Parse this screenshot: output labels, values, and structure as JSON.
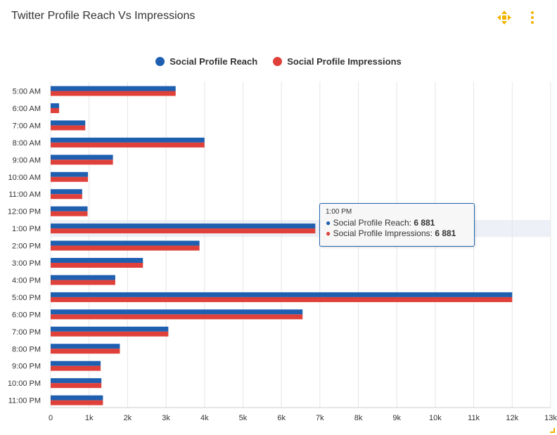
{
  "header": {
    "title": "Twitter Profile Reach Vs Impressions",
    "move_icon": "move-arrows-icon",
    "menu_icon": "kebab-menu-icon",
    "accent_color": "#f2b200"
  },
  "legend": [
    {
      "label": "Social Profile Reach",
      "color": "#1f5fb0"
    },
    {
      "label": "Social Profile Impressions",
      "color": "#e0403a"
    }
  ],
  "tooltip": {
    "time": "1:00 PM",
    "rows": [
      {
        "label": "Social Profile Reach:",
        "value": "6 881",
        "color": "#1f5fb0"
      },
      {
        "label": "Social Profile Impressions:",
        "value": "6 881",
        "color": "#e0403a"
      }
    ]
  },
  "chart_data": {
    "type": "bar",
    "orientation": "horizontal",
    "title": "Twitter Profile Reach Vs Impressions",
    "xlabel": "",
    "ylabel": "",
    "categories": [
      "5:00 AM",
      "6:00 AM",
      "7:00 AM",
      "8:00 AM",
      "9:00 AM",
      "10:00 AM",
      "11:00 AM",
      "12:00 PM",
      "1:00 PM",
      "2:00 PM",
      "3:00 PM",
      "4:00 PM",
      "5:00 PM",
      "6:00 PM",
      "7:00 PM",
      "8:00 PM",
      "9:00 PM",
      "10:00 PM",
      "11:00 PM"
    ],
    "series": [
      {
        "name": "Social Profile Reach",
        "color": "#1f5fb0",
        "values": [
          3250,
          220,
          900,
          4000,
          1620,
          970,
          820,
          960,
          6881,
          3870,
          2400,
          1680,
          12000,
          6550,
          3060,
          1800,
          1300,
          1320,
          1360
        ]
      },
      {
        "name": "Social Profile Impressions",
        "color": "#e0403a",
        "values": [
          3250,
          220,
          900,
          4000,
          1620,
          970,
          820,
          960,
          6881,
          3870,
          2400,
          1680,
          12000,
          6550,
          3060,
          1800,
          1300,
          1320,
          1360
        ]
      }
    ],
    "xlim": [
      0,
      13000
    ],
    "ticks": [
      "0",
      "1k",
      "2k",
      "3k",
      "4k",
      "5k",
      "6k",
      "7k",
      "8k",
      "9k",
      "10k",
      "11k",
      "12k",
      "13k"
    ],
    "grid": true,
    "legend_position": "top-center",
    "highlighted_category": "1:00 PM"
  }
}
